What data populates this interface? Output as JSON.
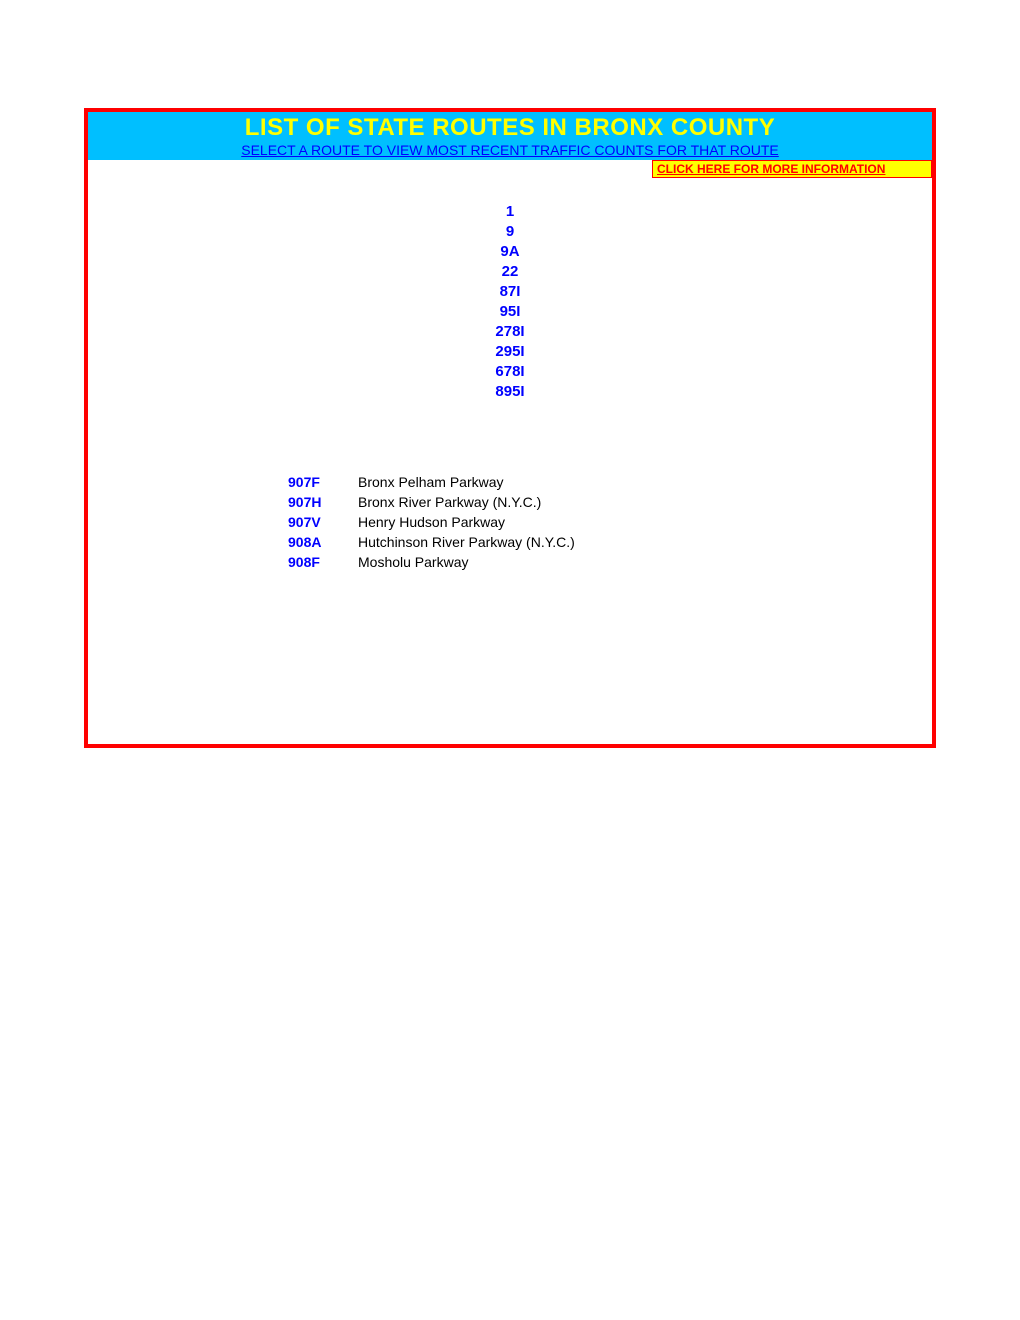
{
  "header": {
    "title": "LIST OF STATE ROUTES IN BRONX COUNTY",
    "subtitle": "SELECT A ROUTE TO VIEW MOST RECENT TRAFFIC COUNTS FOR THAT ROUTE",
    "info_link": "CLICK HERE FOR MORE INFORMATION"
  },
  "colors": {
    "border": "#ff0000",
    "header_bg": "#00bfff",
    "title_color": "#ffff00",
    "link_color": "#0000ff",
    "info_bg": "#ffff00",
    "info_text": "#ff0000",
    "text_color": "#000000",
    "page_bg": "#ffffff"
  },
  "routes": [
    "1",
    "9",
    "9A",
    "22",
    "87I",
    "95I",
    "278I",
    "295I",
    "678I",
    "895I"
  ],
  "parkways": [
    {
      "code": "907F",
      "name": "Bronx Pelham Parkway"
    },
    {
      "code": "907H",
      "name": "Bronx River Parkway (N.Y.C.)"
    },
    {
      "code": "907V",
      "name": "Henry Hudson Parkway"
    },
    {
      "code": "908A",
      "name": "Hutchinson River Parkway (N.Y.C.)"
    },
    {
      "code": "908F",
      "name": "Mosholu Parkway"
    }
  ]
}
